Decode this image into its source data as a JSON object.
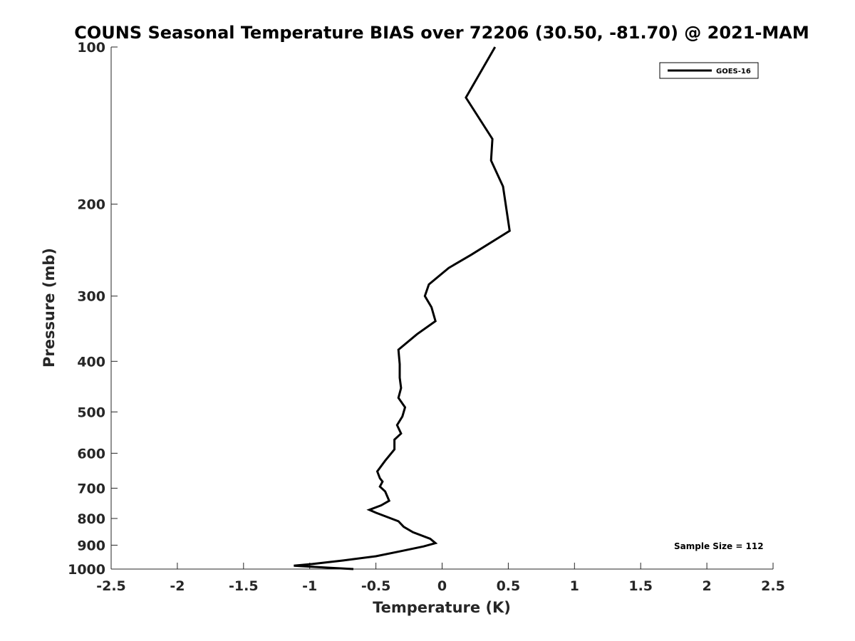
{
  "chart_data": {
    "type": "line",
    "title": "COUNS Seasonal Temperature BIAS over 72206 (30.50, -81.70) @ 2021-MAM",
    "xlabel": "Temperature (K)",
    "ylabel": "Pressure (mb)",
    "xlim": [
      -2.5,
      2.5
    ],
    "ylim": [
      100,
      1000
    ],
    "y_scale": "log",
    "y_reversed": true,
    "x_ticks": [
      "-2.5",
      "-2",
      "-1.5",
      "-1",
      "-0.5",
      "0",
      "0.5",
      "1",
      "1.5",
      "2",
      "2.5"
    ],
    "y_ticks": [
      "100",
      "200",
      "300",
      "400",
      "500",
      "600",
      "700",
      "800",
      "900",
      "1000"
    ],
    "grid": false,
    "legend_position": "top-right",
    "annotation": "Sample Size = 112",
    "series": [
      {
        "name": "GOES-16",
        "color": "#000000",
        "points": [
          {
            "x": 0.4,
            "p": 100
          },
          {
            "x": 0.18,
            "p": 125
          },
          {
            "x": 0.38,
            "p": 150
          },
          {
            "x": 0.37,
            "p": 165
          },
          {
            "x": 0.46,
            "p": 185
          },
          {
            "x": 0.51,
            "p": 225
          },
          {
            "x": 0.22,
            "p": 250
          },
          {
            "x": 0.05,
            "p": 265
          },
          {
            "x": -0.1,
            "p": 285
          },
          {
            "x": -0.13,
            "p": 300
          },
          {
            "x": -0.08,
            "p": 315
          },
          {
            "x": -0.05,
            "p": 335
          },
          {
            "x": -0.19,
            "p": 355
          },
          {
            "x": -0.33,
            "p": 380
          },
          {
            "x": -0.32,
            "p": 405
          },
          {
            "x": -0.32,
            "p": 430
          },
          {
            "x": -0.31,
            "p": 450
          },
          {
            "x": -0.33,
            "p": 470
          },
          {
            "x": -0.28,
            "p": 490
          },
          {
            "x": -0.3,
            "p": 510
          },
          {
            "x": -0.34,
            "p": 530
          },
          {
            "x": -0.31,
            "p": 550
          },
          {
            "x": -0.36,
            "p": 565
          },
          {
            "x": -0.36,
            "p": 590
          },
          {
            "x": -0.43,
            "p": 620
          },
          {
            "x": -0.49,
            "p": 650
          },
          {
            "x": -0.47,
            "p": 670
          },
          {
            "x": -0.45,
            "p": 680
          },
          {
            "x": -0.47,
            "p": 695
          },
          {
            "x": -0.43,
            "p": 710
          },
          {
            "x": -0.4,
            "p": 740
          },
          {
            "x": -0.46,
            "p": 755
          },
          {
            "x": -0.55,
            "p": 770
          },
          {
            "x": -0.5,
            "p": 780
          },
          {
            "x": -0.33,
            "p": 810
          },
          {
            "x": -0.29,
            "p": 830
          },
          {
            "x": -0.22,
            "p": 850
          },
          {
            "x": -0.09,
            "p": 875
          },
          {
            "x": -0.05,
            "p": 892
          },
          {
            "x": -0.14,
            "p": 905
          },
          {
            "x": -0.32,
            "p": 925
          },
          {
            "x": -0.5,
            "p": 945
          },
          {
            "x": -0.75,
            "p": 963
          },
          {
            "x": -0.98,
            "p": 978
          },
          {
            "x": -1.12,
            "p": 985
          },
          {
            "x": -0.89,
            "p": 993
          },
          {
            "x": -0.67,
            "p": 1000
          }
        ]
      }
    ]
  }
}
